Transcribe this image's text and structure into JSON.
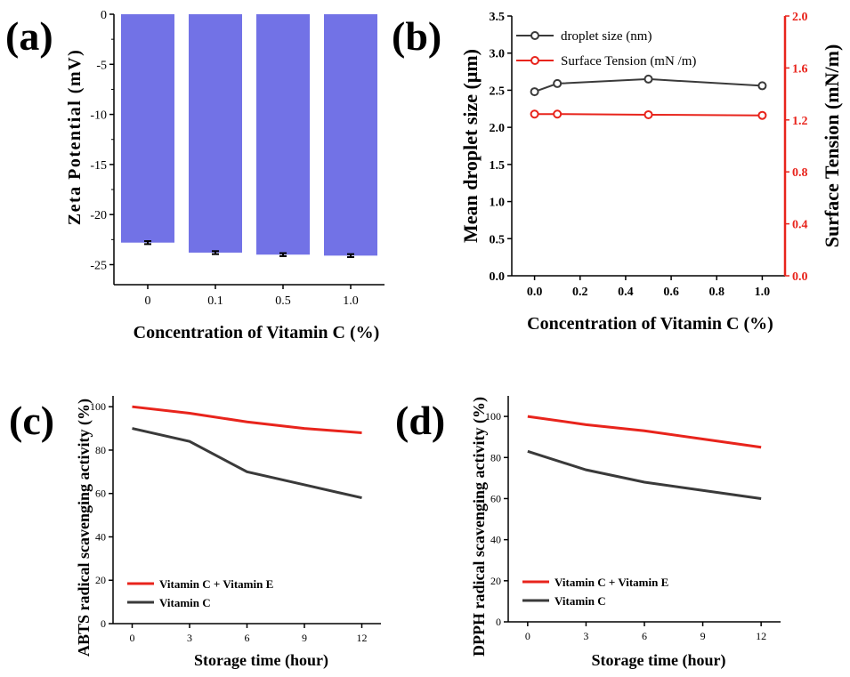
{
  "panels": {
    "a": {
      "label": "(a)"
    },
    "b": {
      "label": "(b)"
    },
    "c": {
      "label": "(c)"
    },
    "d": {
      "label": "(d)"
    }
  },
  "colors": {
    "bar": "#7272e6",
    "droplet": "#3a3a3a",
    "tension": "#e8241c",
    "vitCE": "#e8241c",
    "vitC": "#3a3a3a"
  },
  "chart_data": [
    {
      "id": "a",
      "type": "bar",
      "title": "",
      "xlabel": "Concentration of Vitamin C (%)",
      "ylabel": "Zeta Potential (mV)",
      "categories": [
        "0",
        "0.1",
        "0.5",
        "1.0"
      ],
      "values": [
        -22.8,
        -23.8,
        -24.0,
        -24.1
      ],
      "errors": [
        0.15,
        0.15,
        0.15,
        0.15
      ],
      "ylim": [
        -27,
        0
      ],
      "yticks": [
        0,
        -5,
        -10,
        -15,
        -20,
        -25
      ],
      "ytick_labels": [
        "0",
        "-5",
        "-10",
        "-15",
        "-20",
        "-25"
      ]
    },
    {
      "id": "b",
      "type": "line",
      "xlabel": "Concentration of Vitamin C (%)",
      "ylabel": "Mean droplet size (μm)",
      "ylabel_right": "Surface Tension (mN/m)",
      "x": [
        0.0,
        0.1,
        0.5,
        1.0
      ],
      "series": [
        {
          "name": "droplet size (nm)",
          "axis": "left",
          "values": [
            2.48,
            2.59,
            2.65,
            2.56
          ]
        },
        {
          "name": "Surface Tension (mN /m)",
          "axis": "right",
          "values": [
            1.245,
            1.245,
            1.24,
            1.235
          ]
        }
      ],
      "xlim": [
        -0.1,
        1.1
      ],
      "xticks": [
        "0.0",
        "0.2",
        "0.4",
        "0.6",
        "0.8",
        "1.0"
      ],
      "ylim": [
        0,
        3.5
      ],
      "yticks": [
        "0.0",
        "0.5",
        "1.0",
        "1.5",
        "2.0",
        "2.5",
        "3.0",
        "3.5"
      ],
      "ylim_right": [
        0,
        2.0
      ],
      "yticks_right": [
        "0.0",
        "0.4",
        "0.8",
        "1.2",
        "1.6",
        "2.0"
      ]
    },
    {
      "id": "c",
      "type": "line",
      "xlabel": "Storage time (hour)",
      "ylabel": "ABTS radical scavenging activity (%)",
      "x": [
        0,
        3,
        6,
        9,
        12
      ],
      "series": [
        {
          "name": "Vitamin C + Vitamin E",
          "values": [
            100,
            97,
            93,
            90,
            88
          ]
        },
        {
          "name": "Vitamin C",
          "values": [
            90,
            84,
            70,
            64,
            58
          ]
        }
      ],
      "xlim": [
        -1,
        13
      ],
      "xticks": [
        "0",
        "3",
        "6",
        "9",
        "12"
      ],
      "ylim": [
        0,
        105
      ],
      "yticks": [
        "0",
        "20",
        "40",
        "60",
        "80",
        "100"
      ]
    },
    {
      "id": "d",
      "type": "line",
      "xlabel": "Storage time (hour)",
      "ylabel": "DPPH radical scavenging activity (%)",
      "x": [
        0,
        3,
        6,
        9,
        12
      ],
      "series": [
        {
          "name": "Vitamin C + Vitamin E",
          "values": [
            100,
            96,
            93,
            89,
            85
          ]
        },
        {
          "name": "Vitamin C",
          "values": [
            83,
            74,
            68,
            64,
            60
          ]
        }
      ],
      "xlim": [
        -1,
        13
      ],
      "xticks": [
        "0",
        "3",
        "6",
        "9",
        "12"
      ],
      "ylim": [
        0,
        110
      ],
      "yticks": [
        "0",
        "20",
        "40",
        "60",
        "80",
        "100"
      ]
    }
  ]
}
